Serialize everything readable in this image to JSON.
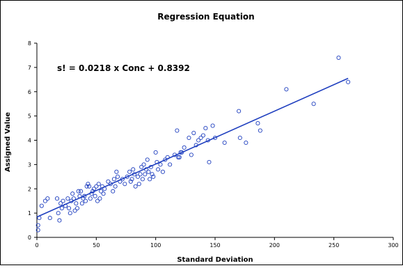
{
  "chart_data": {
    "type": "scatter",
    "title": "Regression Equation",
    "xlabel": "Standard Deviation",
    "ylabel": "Assigned Value",
    "xlim": [
      0,
      300
    ],
    "ylim": [
      0,
      8
    ],
    "xticks": [
      0,
      50,
      100,
      150,
      200,
      250,
      300
    ],
    "yticks": [
      0,
      1,
      2,
      3,
      4,
      5,
      6,
      7,
      8
    ],
    "grid": false,
    "legend": "none",
    "annotation": "s! = 0.0218 x Conc + 0.8392",
    "marker_color": "#1f3fbf",
    "trendline": {
      "slope": 0.0218,
      "intercept": 0.8392,
      "x_range": [
        0,
        262
      ],
      "color": "#1f3fbf"
    },
    "points": [
      [
        1,
        0.3
      ],
      [
        1,
        0.5
      ],
      [
        2,
        0.8
      ],
      [
        4,
        1.3
      ],
      [
        7,
        1.5
      ],
      [
        9,
        1.6
      ],
      [
        11,
        0.8
      ],
      [
        17,
        1.6
      ],
      [
        18,
        1.0
      ],
      [
        19,
        0.7
      ],
      [
        20,
        1.4
      ],
      [
        21,
        1.2
      ],
      [
        22,
        1.5
      ],
      [
        24,
        1.3
      ],
      [
        26,
        1.6
      ],
      [
        27,
        1.2
      ],
      [
        28,
        1.0
      ],
      [
        29,
        1.5
      ],
      [
        30,
        1.8
      ],
      [
        31,
        1.6
      ],
      [
        32,
        1.1
      ],
      [
        33,
        1.4
      ],
      [
        34,
        1.2
      ],
      [
        35,
        1.9
      ],
      [
        36,
        1.7
      ],
      [
        37,
        1.9
      ],
      [
        38,
        1.4
      ],
      [
        39,
        1.6
      ],
      [
        40,
        1.7
      ],
      [
        41,
        1.5
      ],
      [
        42,
        2.1
      ],
      [
        43,
        2.2
      ],
      [
        44,
        2.1
      ],
      [
        45,
        1.6
      ],
      [
        46,
        1.8
      ],
      [
        47,
        1.9
      ],
      [
        48,
        2.0
      ],
      [
        49,
        1.7
      ],
      [
        50,
        2.1
      ],
      [
        51,
        1.5
      ],
      [
        52,
        2.2
      ],
      [
        53,
        1.6
      ],
      [
        54,
        1.9
      ],
      [
        55,
        2.1
      ],
      [
        56,
        1.8
      ],
      [
        57,
        2.0
      ],
      [
        60,
        2.3
      ],
      [
        62,
        2.2
      ],
      [
        64,
        1.9
      ],
      [
        65,
        2.4
      ],
      [
        66,
        2.1
      ],
      [
        67,
        2.7
      ],
      [
        68,
        2.5
      ],
      [
        70,
        2.3
      ],
      [
        72,
        2.4
      ],
      [
        74,
        2.2
      ],
      [
        76,
        2.5
      ],
      [
        78,
        2.7
      ],
      [
        79,
        2.3
      ],
      [
        80,
        2.4
      ],
      [
        81,
        2.8
      ],
      [
        82,
        2.6
      ],
      [
        83,
        2.1
      ],
      [
        85,
        2.5
      ],
      [
        86,
        2.2
      ],
      [
        87,
        2.6
      ],
      [
        88,
        2.9
      ],
      [
        89,
        2.4
      ],
      [
        90,
        3.0
      ],
      [
        91,
        2.6
      ],
      [
        92,
        2.8
      ],
      [
        93,
        3.2
      ],
      [
        94,
        2.7
      ],
      [
        95,
        2.4
      ],
      [
        96,
        2.9
      ],
      [
        97,
        2.6
      ],
      [
        98,
        2.5
      ],
      [
        100,
        3.5
      ],
      [
        101,
        3.1
      ],
      [
        102,
        2.8
      ],
      [
        104,
        3.0
      ],
      [
        106,
        2.7
      ],
      [
        108,
        3.2
      ],
      [
        110,
        3.3
      ],
      [
        112,
        3.0
      ],
      [
        116,
        3.4
      ],
      [
        118,
        4.4
      ],
      [
        119,
        3.3
      ],
      [
        120,
        3.3
      ],
      [
        121,
        3.5
      ],
      [
        122,
        3.5
      ],
      [
        124,
        3.7
      ],
      [
        128,
        4.1
      ],
      [
        130,
        3.4
      ],
      [
        132,
        4.3
      ],
      [
        134,
        3.8
      ],
      [
        136,
        4.0
      ],
      [
        138,
        4.1
      ],
      [
        140,
        4.2
      ],
      [
        142,
        4.5
      ],
      [
        144,
        4.0
      ],
      [
        145,
        3.1
      ],
      [
        148,
        4.6
      ],
      [
        150,
        4.1
      ],
      [
        158,
        3.9
      ],
      [
        170,
        5.2
      ],
      [
        171,
        4.1
      ],
      [
        176,
        3.9
      ],
      [
        186,
        4.7
      ],
      [
        188,
        4.4
      ],
      [
        210,
        6.1
      ],
      [
        233,
        5.5
      ],
      [
        254,
        7.4
      ],
      [
        262,
        6.4
      ]
    ]
  }
}
